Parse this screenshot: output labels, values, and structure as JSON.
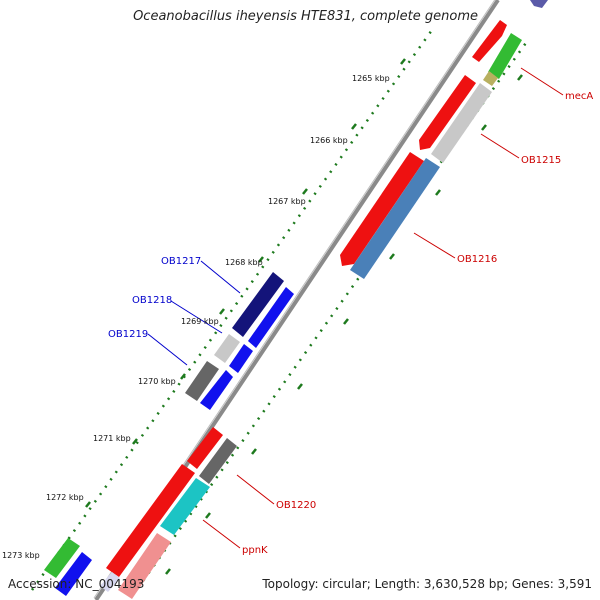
{
  "map": {
    "title": "Oceanobacillus iheyensis HTE831, complete genome",
    "accession_text": "Accession: NC_004193",
    "summary_text": "Topology: circular; Length: 3,630,528 bp; Genes: 3,591"
  },
  "ticks": [
    {
      "label": "1265 kbp"
    },
    {
      "label": "1266 kbp"
    },
    {
      "label": "1267 kbp"
    },
    {
      "label": "1268 kbp"
    },
    {
      "label": "1269 kbp"
    },
    {
      "label": "1270 kbp"
    },
    {
      "label": "1271 kbp"
    },
    {
      "label": "1272 kbp"
    },
    {
      "label": "1273 kbp"
    }
  ],
  "gene_labels": [
    {
      "text": "mecA",
      "color": "#cc0000"
    },
    {
      "text": "OB1215",
      "color": "#cc0000"
    },
    {
      "text": "OB1216",
      "color": "#cc0000"
    },
    {
      "text": "OB1217",
      "color": "#0000cc"
    },
    {
      "text": "OB1218",
      "color": "#0000cc"
    },
    {
      "text": "OB1219",
      "color": "#0000cc"
    },
    {
      "text": "OB1220",
      "color": "#cc0000"
    },
    {
      "text": "ppnK",
      "color": "#cc0000"
    }
  ],
  "colors": {
    "backbone": "#8a8a8a",
    "tick_dots": "#1e7a1e",
    "red": "#ee1111",
    "blue": "#1111ee",
    "navy": "#14147a",
    "gray": "#666666",
    "light_gray": "#c8c8c8",
    "steel_blue": "#4a80b8",
    "cyan": "#1cc4c4",
    "pink": "#f09090",
    "green": "#33bb33"
  }
}
